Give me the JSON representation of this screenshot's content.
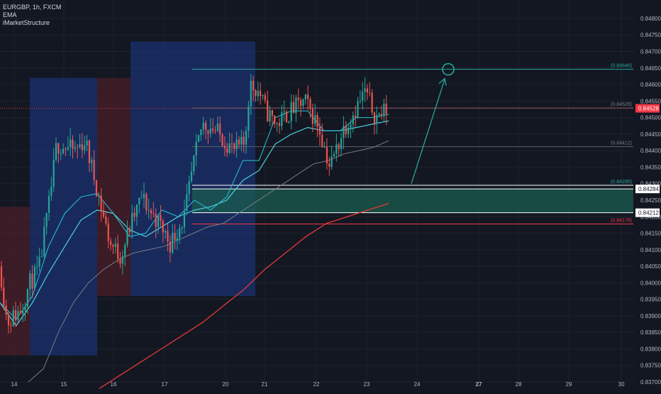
{
  "header": {
    "symbol_line": "EURGBP, 1h, FXCM",
    "indicator_1": "EMA",
    "indicator_2": "iMarketStructure"
  },
  "colors": {
    "background": "#131722",
    "axis_text": "#b2b5be",
    "grid": "#1e222d",
    "blue_zone": "#1e3a8a",
    "red_zone": "#5b1f2a",
    "bull": "#26a69a",
    "bear": "#ef5350",
    "ema_fast": "#26c6da",
    "ema_mid": "#4dd0e1",
    "ema_slow": "#787b86",
    "ema_long": "#e53935",
    "target": "#26a69a",
    "support_zone": "#1b5e4f",
    "current_price": "#f23645"
  },
  "chart_data": {
    "type": "candlestick",
    "symbol": "EURGBP",
    "timeframe": "1h",
    "ylim": [
      0.837,
      0.8483
    ],
    "x_tick_labels": [
      "14",
      "15",
      "16",
      "17",
      "20",
      "21",
      "22",
      "23",
      "24",
      "27",
      "28",
      "29",
      "30"
    ],
    "y_tick_labels": [
      "0.84800",
      "0.84750",
      "0.84700",
      "0.84650",
      "0.84600",
      "0.84550",
      "0.84500",
      "0.84450",
      "0.84400",
      "0.84350",
      "0.84300",
      "0.84250",
      "0.84200",
      "0.84150",
      "0.84100",
      "0.84050",
      "0.84000",
      "0.83950",
      "0.83900",
      "0.83850",
      "0.83800",
      "0.83750",
      "0.83700"
    ],
    "y_tick_values": [
      0.848,
      0.8475,
      0.847,
      0.8465,
      0.846,
      0.8455,
      0.845,
      0.8445,
      0.844,
      0.8435,
      0.843,
      0.8425,
      0.842,
      0.8415,
      0.841,
      0.8405,
      0.84,
      0.8395,
      0.839,
      0.8385,
      0.838,
      0.8375,
      0.837
    ],
    "price_levels": [
      {
        "label": "(0.84646)",
        "value": 0.84646,
        "kind": "target"
      },
      {
        "label": "(0.84529)",
        "value": 0.84529,
        "kind": "neutral"
      },
      {
        "label": "(0.84412)",
        "value": 0.84412,
        "kind": "neutral"
      },
      {
        "label": "(0.84295)",
        "value": 0.84295,
        "kind": "support"
      },
      {
        "label": "0.84284",
        "value": 0.84284,
        "kind": "zone-top"
      },
      {
        "label": "0.84212",
        "value": 0.84212,
        "kind": "zone-bottom"
      },
      {
        "label": "(0.84178)",
        "value": 0.84178,
        "kind": "stop"
      }
    ],
    "current_price": {
      "label": "0.84528",
      "value": 0.84528
    },
    "support_zone": {
      "top": 0.84284,
      "bottom": 0.84212
    },
    "ema_fast": [
      0.8394,
      0.8389,
      0.8396,
      0.8411,
      0.8421,
      0.8426,
      0.8427,
      0.8421,
      0.8414,
      0.8415,
      0.8422,
      0.842,
      0.8425,
      0.8422,
      0.8426,
      0.8437,
      0.8437,
      0.845,
      0.8452,
      0.8452,
      0.8446,
      0.8446,
      0.845,
      0.845,
      0.8451
    ],
    "ema_mid": [
      0.8394,
      0.8387,
      0.8394,
      0.8403,
      0.8411,
      0.8419,
      0.8422,
      0.8421,
      0.8416,
      0.8414,
      0.8417,
      0.842,
      0.8422,
      0.8423,
      0.8425,
      0.8431,
      0.8434,
      0.8442,
      0.8445,
      0.8447,
      0.8446,
      0.8446,
      0.8447,
      0.8448,
      0.8449
    ],
    "ema_slow": [
      0.837,
      0.8374,
      0.8385,
      0.8394,
      0.84,
      0.8404,
      0.8407,
      0.8409,
      0.841,
      0.8411,
      0.8413,
      0.8415,
      0.8417,
      0.8418,
      0.8421,
      0.8424,
      0.8427,
      0.843,
      0.8433,
      0.8436,
      0.8437,
      0.8439,
      0.844,
      0.8441,
      0.8443
    ],
    "ema_long": [
      0.8368,
      0.8372,
      0.8376,
      0.838,
      0.8384,
      0.8388,
      0.8393,
      0.8398,
      0.8404,
      0.8409,
      0.8414,
      0.8418,
      0.842,
      0.8422,
      0.8424
    ],
    "projection_arrow": {
      "from": 0.843,
      "to": 0.84646
    }
  }
}
